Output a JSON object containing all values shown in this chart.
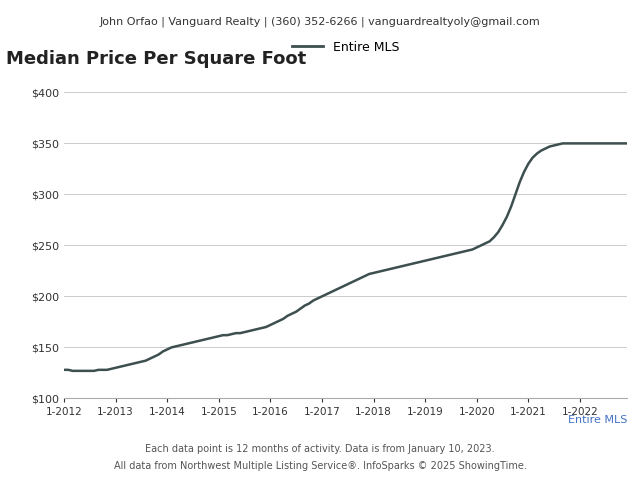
{
  "header_text": "John Orfao | Vanguard Realty | (360) 352-6266 | vanguardrealtyoly@gmail.com",
  "title": "Median Price Per Square Foot",
  "legend_label": "Entire MLS",
  "footer_label": "Entire MLS",
  "footnote1": "Each data point is 12 months of activity. Data is from January 10, 2023.",
  "footnote2": "All data from Northwest Multiple Listing Service®. InfoSparks © 2025 ShowingTime.",
  "line_color": "#3d4f4f",
  "legend_line_color": "#3d4f4f",
  "footer_color": "#4472c4",
  "background_color": "#ffffff",
  "header_bg_color": "#e8e8e8",
  "grid_color": "#cccccc",
  "ylim": [
    100,
    420
  ],
  "yticks": [
    100,
    150,
    200,
    250,
    300,
    350,
    400
  ],
  "xtick_labels": [
    "1-2012",
    "1-2013",
    "1-2014",
    "1-2015",
    "1-2016",
    "1-2017",
    "1-2018",
    "1-2019",
    "1-2020",
    "1-2021",
    "1-2022"
  ],
  "x_values": [
    0,
    1,
    2,
    3,
    4,
    5,
    6,
    7,
    8,
    9,
    10,
    11,
    12,
    13,
    14,
    15,
    16,
    17,
    18,
    19,
    20,
    21,
    22,
    23,
    24,
    25,
    26,
    27,
    28,
    29,
    30,
    31,
    32,
    33,
    34,
    35,
    36,
    37,
    38,
    39,
    40,
    41,
    42,
    43,
    44,
    45,
    46,
    47,
    48,
    49,
    50,
    51,
    52,
    53,
    54,
    55,
    56,
    57,
    58,
    59,
    60,
    61,
    62,
    63,
    64,
    65,
    66,
    67,
    68,
    69,
    70,
    71,
    72,
    73,
    74,
    75,
    76,
    77,
    78,
    79,
    80,
    81,
    82,
    83,
    84,
    85,
    86,
    87,
    88,
    89,
    90,
    91,
    92,
    93,
    94,
    95,
    96,
    97,
    98,
    99,
    100,
    101,
    102,
    103,
    104,
    105,
    106,
    107,
    108,
    109,
    110,
    111,
    112,
    113,
    114,
    115,
    116,
    117,
    118,
    119,
    120,
    121,
    122,
    123,
    124,
    125,
    126,
    127,
    128,
    129,
    130,
    131
  ],
  "y_values": [
    128,
    128,
    127,
    127,
    127,
    127,
    127,
    127,
    128,
    128,
    128,
    129,
    130,
    131,
    132,
    133,
    134,
    135,
    136,
    137,
    139,
    141,
    143,
    146,
    148,
    150,
    151,
    152,
    153,
    154,
    155,
    156,
    157,
    158,
    159,
    160,
    161,
    162,
    162,
    163,
    164,
    164,
    165,
    166,
    167,
    168,
    169,
    170,
    172,
    174,
    176,
    178,
    181,
    183,
    185,
    188,
    191,
    193,
    196,
    198,
    200,
    202,
    204,
    206,
    208,
    210,
    212,
    214,
    216,
    218,
    220,
    222,
    223,
    224,
    225,
    226,
    227,
    228,
    229,
    230,
    231,
    232,
    233,
    234,
    235,
    236,
    237,
    238,
    239,
    240,
    241,
    242,
    243,
    244,
    245,
    246,
    248,
    250,
    252,
    254,
    258,
    263,
    270,
    278,
    288,
    300,
    312,
    322,
    330,
    336,
    340,
    343,
    345,
    347,
    348,
    349,
    350,
    350,
    350,
    350,
    350,
    350,
    350,
    350,
    350,
    350,
    350,
    350,
    350,
    350,
    350,
    350
  ]
}
